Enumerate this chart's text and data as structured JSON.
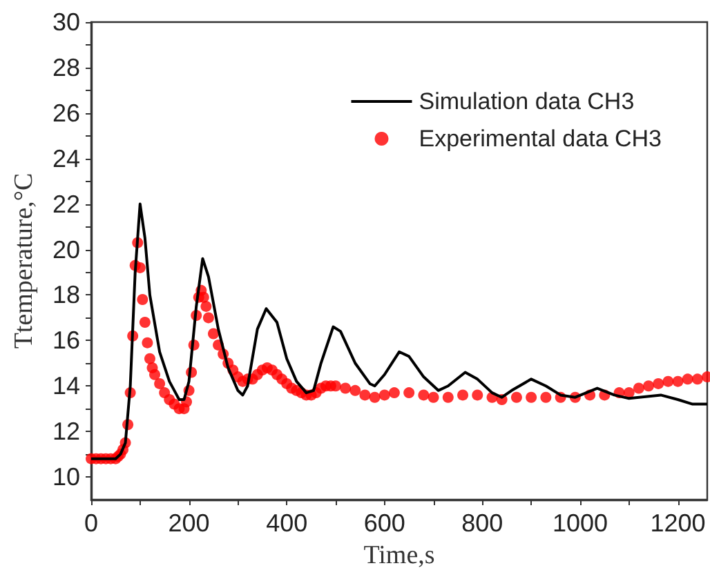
{
  "chart_data": {
    "type": "line",
    "xlabel": "Time,s",
    "ylabel": "Ttemperature,°C",
    "xlim": [
      0,
      1260
    ],
    "ylim": [
      9,
      30
    ],
    "xticks": [
      0,
      {
        "value": 100,
        "label": null
      },
      200,
      {
        "value": 300,
        "label": null
      },
      400,
      {
        "value": 500,
        "label": null
      },
      600,
      {
        "value": 700,
        "label": null
      },
      800,
      {
        "value": 900,
        "label": null
      },
      1000,
      {
        "value": 1100,
        "label": null
      },
      1200
    ],
    "yticks": [
      10,
      {
        "value": 11,
        "label": null
      },
      12,
      {
        "value": 13,
        "label": null
      },
      14,
      {
        "value": 15,
        "label": null
      },
      16,
      {
        "value": 17,
        "label": null
      },
      18,
      {
        "value": 19,
        "label": null
      },
      20,
      {
        "value": 21,
        "label": null
      },
      22,
      {
        "value": 23,
        "label": null
      },
      24,
      {
        "value": 25,
        "label": null
      },
      26,
      {
        "value": 27,
        "label": null
      },
      28,
      {
        "value": 29,
        "label": null
      },
      30
    ],
    "grid": false,
    "legend": "top right",
    "series": [
      {
        "name": "Simulation data CH3",
        "color": "#000000",
        "marker": "none",
        "line_style": "solid",
        "x": [
          0,
          50,
          60,
          70,
          80,
          90,
          100,
          110,
          120,
          140,
          160,
          180,
          190,
          200,
          215,
          228,
          240,
          260,
          280,
          300,
          310,
          320,
          340,
          358,
          380,
          400,
          420,
          440,
          455,
          470,
          495,
          510,
          540,
          570,
          580,
          600,
          630,
          650,
          680,
          710,
          730,
          765,
          790,
          820,
          840,
          860,
          900,
          930,
          960,
          990,
          1035,
          1070,
          1100,
          1165,
          1200,
          1230,
          1260
        ],
        "values": [
          10.8,
          10.8,
          11.0,
          11.5,
          14,
          19,
          22,
          20.5,
          18,
          15.5,
          14.2,
          13.4,
          13.4,
          14.2,
          17.5,
          19.6,
          18.8,
          16.5,
          14.8,
          13.8,
          13.6,
          14,
          16.5,
          17.4,
          16.8,
          15.2,
          14.2,
          13.7,
          13.8,
          15,
          16.6,
          16.4,
          15,
          14.1,
          14,
          14.5,
          15.5,
          15.3,
          14.4,
          13.8,
          14,
          14.6,
          14.3,
          13.7,
          13.5,
          13.8,
          14.3,
          14,
          13.6,
          13.5,
          13.9,
          13.6,
          13.45,
          13.6,
          13.4,
          13.2,
          13.2
        ]
      },
      {
        "name": "Experimental data CH3",
        "type": "scatter",
        "color": "#ff0000",
        "marker": "circle",
        "x": [
          0,
          10,
          20,
          30,
          40,
          50,
          55,
          60,
          65,
          70,
          75,
          80,
          85,
          90,
          95,
          100,
          105,
          110,
          115,
          120,
          125,
          130,
          140,
          150,
          160,
          170,
          180,
          190,
          195,
          200,
          205,
          210,
          215,
          220,
          225,
          230,
          235,
          240,
          250,
          260,
          270,
          280,
          290,
          300,
          310,
          320,
          330,
          340,
          350,
          360,
          370,
          380,
          390,
          400,
          410,
          420,
          430,
          440,
          450,
          460,
          470,
          480,
          490,
          500,
          520,
          540,
          560,
          580,
          600,
          620,
          650,
          680,
          700,
          730,
          760,
          790,
          820,
          840,
          870,
          900,
          930,
          960,
          990,
          1020,
          1050,
          1080,
          1100,
          1120,
          1140,
          1160,
          1180,
          1200,
          1220,
          1240,
          1260
        ],
        "values": [
          10.8,
          10.8,
          10.8,
          10.8,
          10.8,
          10.8,
          10.9,
          11.0,
          11.2,
          11.5,
          12.3,
          13.7,
          16.2,
          19.3,
          20.3,
          19.2,
          17.8,
          16.8,
          15.9,
          15.2,
          14.8,
          14.5,
          14.1,
          13.7,
          13.4,
          13.2,
          13.0,
          13.0,
          13.3,
          13.8,
          14.6,
          15.8,
          17.1,
          17.9,
          18.2,
          17.9,
          17.5,
          17.0,
          16.3,
          15.8,
          15.4,
          15.0,
          14.7,
          14.4,
          14.2,
          14.3,
          14.3,
          14.5,
          14.7,
          14.8,
          14.7,
          14.5,
          14.3,
          14.1,
          13.9,
          13.8,
          13.7,
          13.6,
          13.6,
          13.7,
          13.9,
          14.0,
          14.0,
          14.0,
          13.9,
          13.8,
          13.6,
          13.5,
          13.6,
          13.7,
          13.7,
          13.6,
          13.5,
          13.5,
          13.6,
          13.6,
          13.5,
          13.4,
          13.5,
          13.5,
          13.5,
          13.5,
          13.5,
          13.6,
          13.6,
          13.7,
          13.7,
          13.9,
          14.0,
          14.1,
          14.2,
          14.2,
          14.3,
          14.3,
          14.4
        ]
      }
    ]
  }
}
